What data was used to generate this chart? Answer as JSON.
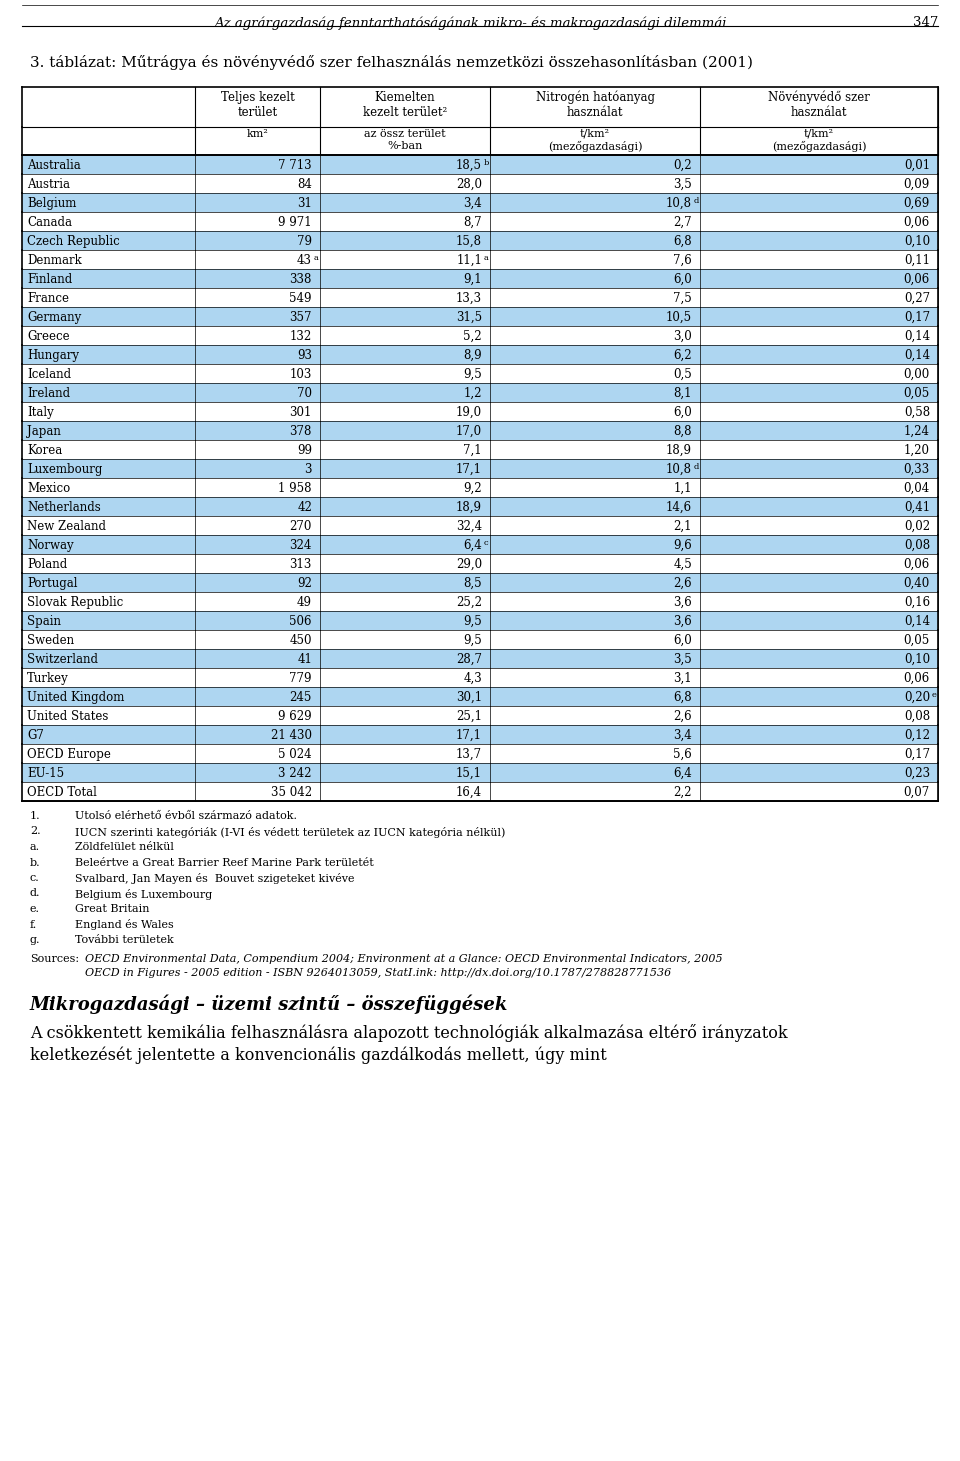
{
  "page_header": "Az agrárgazdaság fenntarthatóságának mikro- és makrogazdasági dilemmái",
  "page_number": "347",
  "table_title": "3. táblázat: Műtrágya és növényvédő szer felhasználás nemzetközi összehasonlításban (2001)",
  "col_headers_row1": [
    "Teljes kezelt\nterület",
    "Kiemelten\nkezelt terület²",
    "Nitrogén hatóanyag\nhasználat",
    "Növényvédő szer\nhasználat"
  ],
  "col_headers_row2": [
    "km²",
    "az össz terület\n%-ban",
    "t/km²\n(mezőgazdasági)",
    "t/km²\n(mezőgazdasági)"
  ],
  "rows": [
    [
      "Australia",
      "7 713",
      "18,5",
      "b",
      "0,2",
      "",
      "0,01",
      ""
    ],
    [
      "Austria",
      "84",
      "28,0",
      "",
      "3,5",
      "",
      "0,09",
      ""
    ],
    [
      "Belgium",
      "31",
      "3,4",
      "",
      "10,8",
      "d",
      "0,69",
      ""
    ],
    [
      "Canada",
      "9 971",
      "8,7",
      "",
      "2,7",
      "",
      "0,06",
      ""
    ],
    [
      "Czech Republic",
      "79",
      "15,8",
      "",
      "6,8",
      "",
      "0,10",
      ""
    ],
    [
      "Denmark",
      "43",
      "a",
      "11,1",
      "a",
      "7,6",
      "",
      "0,11",
      ""
    ],
    [
      "Finland",
      "338",
      "9,1",
      "",
      "6,0",
      "",
      "0,06",
      ""
    ],
    [
      "France",
      "549",
      "13,3",
      "",
      "7,5",
      "",
      "0,27",
      ""
    ],
    [
      "Germany",
      "357",
      "31,5",
      "",
      "10,5",
      "",
      "0,17",
      ""
    ],
    [
      "Greece",
      "132",
      "5,2",
      "",
      "3,0",
      "",
      "0,14",
      ""
    ],
    [
      "Hungary",
      "93",
      "8,9",
      "",
      "6,2",
      "",
      "0,14",
      ""
    ],
    [
      "Iceland",
      "103",
      "9,5",
      "",
      "0,5",
      "",
      "0,00",
      ""
    ],
    [
      "Ireland",
      "70",
      "1,2",
      "",
      "8,1",
      "",
      "0,05",
      ""
    ],
    [
      "Italy",
      "301",
      "19,0",
      "",
      "6,0",
      "",
      "0,58",
      ""
    ],
    [
      "Japan",
      "378",
      "17,0",
      "",
      "8,8",
      "",
      "1,24",
      ""
    ],
    [
      "Korea",
      "99",
      "7,1",
      "",
      "18,9",
      "",
      "1,20",
      ""
    ],
    [
      "Luxembourg",
      "3",
      "17,1",
      "",
      "10,8",
      "d",
      "0,33",
      ""
    ],
    [
      "Mexico",
      "1 958",
      "9,2",
      "",
      "1,1",
      "",
      "0,04",
      ""
    ],
    [
      "Netherlands",
      "42",
      "18,9",
      "",
      "14,6",
      "",
      "0,41",
      ""
    ],
    [
      "New Zealand",
      "270",
      "32,4",
      "",
      "2,1",
      "",
      "0,02",
      ""
    ],
    [
      "Norway",
      "324",
      "6,4",
      "c",
      "9,6",
      "",
      "0,08",
      ""
    ],
    [
      "Poland",
      "313",
      "29,0",
      "",
      "4,5",
      "",
      "0,06",
      ""
    ],
    [
      "Portugal",
      "92",
      "8,5",
      "",
      "2,6",
      "",
      "0,40",
      ""
    ],
    [
      "Slovak Republic",
      "49",
      "25,2",
      "",
      "3,6",
      "",
      "0,16",
      ""
    ],
    [
      "Spain",
      "506",
      "9,5",
      "",
      "3,6",
      "",
      "0,14",
      ""
    ],
    [
      "Sweden",
      "450",
      "9,5",
      "",
      "6,0",
      "",
      "0,05",
      ""
    ],
    [
      "Switzerland",
      "41",
      "28,7",
      "",
      "3,5",
      "",
      "0,10",
      ""
    ],
    [
      "Turkey",
      "779",
      "4,3",
      "",
      "3,1",
      "",
      "0,06",
      ""
    ],
    [
      "United Kingdom",
      "245",
      "30,1",
      "",
      "6,8",
      "",
      "0,20",
      "e"
    ],
    [
      "United States",
      "9 629",
      "25,1",
      "",
      "2,6",
      "",
      "0,08",
      ""
    ],
    [
      "G7",
      "21 430",
      "17,1",
      "",
      "3,4",
      "",
      "0,12",
      ""
    ],
    [
      "OECD Europe",
      "5 024",
      "13,7",
      "",
      "5,6",
      "",
      "0,17",
      ""
    ],
    [
      "EU-15",
      "3 242",
      "15,1",
      "",
      "6,4",
      "",
      "0,23",
      ""
    ],
    [
      "OECD Total",
      "35 042",
      "16,4",
      "",
      "2,2",
      "",
      "0,07",
      ""
    ]
  ],
  "rows_simple": [
    [
      "Australia",
      "7 713",
      "18,5 b",
      "0,2",
      "0,01"
    ],
    [
      "Austria",
      "84",
      "28,0",
      "3,5",
      "0,09"
    ],
    [
      "Belgium",
      "31",
      "3,4",
      "10,8 d",
      "0,69"
    ],
    [
      "Canada",
      "9 971",
      "8,7",
      "2,7",
      "0,06"
    ],
    [
      "Czech Republic",
      "79",
      "15,8",
      "6,8",
      "0,10"
    ],
    [
      "Denmark",
      "43 a",
      "11,1 a",
      "7,6",
      "0,11"
    ],
    [
      "Finland",
      "338",
      "9,1",
      "6,0",
      "0,06"
    ],
    [
      "France",
      "549",
      "13,3",
      "7,5",
      "0,27"
    ],
    [
      "Germany",
      "357",
      "31,5",
      "10,5",
      "0,17"
    ],
    [
      "Greece",
      "132",
      "5,2",
      "3,0",
      "0,14"
    ],
    [
      "Hungary",
      "93",
      "8,9",
      "6,2",
      "0,14"
    ],
    [
      "Iceland",
      "103",
      "9,5",
      "0,5",
      "0,00"
    ],
    [
      "Ireland",
      "70",
      "1,2",
      "8,1",
      "0,05"
    ],
    [
      "Italy",
      "301",
      "19,0",
      "6,0",
      "0,58"
    ],
    [
      "Japan",
      "378",
      "17,0",
      "8,8",
      "1,24"
    ],
    [
      "Korea",
      "99",
      "7,1",
      "18,9",
      "1,20"
    ],
    [
      "Luxembourg",
      "3",
      "17,1",
      "10,8 d",
      "0,33"
    ],
    [
      "Mexico",
      "1 958",
      "9,2",
      "1,1",
      "0,04"
    ],
    [
      "Netherlands",
      "42",
      "18,9",
      "14,6",
      "0,41"
    ],
    [
      "New Zealand",
      "270",
      "32,4",
      "2,1",
      "0,02"
    ],
    [
      "Norway",
      "324",
      "6,4 c",
      "9,6",
      "0,08"
    ],
    [
      "Poland",
      "313",
      "29,0",
      "4,5",
      "0,06"
    ],
    [
      "Portugal",
      "92",
      "8,5",
      "2,6",
      "0,40"
    ],
    [
      "Slovak Republic",
      "49",
      "25,2",
      "3,6",
      "0,16"
    ],
    [
      "Spain",
      "506",
      "9,5",
      "3,6",
      "0,14"
    ],
    [
      "Sweden",
      "450",
      "9,5",
      "6,0",
      "0,05"
    ],
    [
      "Switzerland",
      "41",
      "28,7",
      "3,5",
      "0,10"
    ],
    [
      "Turkey",
      "779",
      "4,3",
      "3,1",
      "0,06"
    ],
    [
      "United Kingdom",
      "245",
      "30,1",
      "6,8",
      "0,20 e"
    ],
    [
      "United States",
      "9 629",
      "25,1",
      "2,6",
      "0,08"
    ],
    [
      "G7",
      "21 430",
      "17,1",
      "3,4",
      "0,12"
    ],
    [
      "OECD Europe",
      "5 024",
      "13,7",
      "5,6",
      "0,17"
    ],
    [
      "EU-15",
      "3 242",
      "15,1",
      "6,4",
      "0,23"
    ],
    [
      "OECD Total",
      "35 042",
      "16,4",
      "2,2",
      "0,07"
    ]
  ],
  "footnotes": [
    [
      "1.",
      "Utolsó elérhető évből származó adatok."
    ],
    [
      "2.",
      "IUCN szerinti kategóriák (I-VI és védett területek az IUCN kategória nélkül)"
    ],
    [
      "a.",
      "Zöldfelület nélkül"
    ],
    [
      "b.",
      "Beleértve a Great Barrier Reef Marine Park területét"
    ],
    [
      "c.",
      "Svalbard, Jan Mayen és  Bouvet szigeteket kivéve"
    ],
    [
      "d.",
      "Belgium és Luxembourg"
    ],
    [
      "e.",
      "Great Britain"
    ],
    [
      "f.",
      "England és Wales"
    ],
    [
      "g.",
      "További területek"
    ]
  ],
  "sources_label": "Sources:",
  "sources_line1": "OECD Environmental Data, Compendium 2004; Environment at a Glance: OECD Environmental Indicators, 2005",
  "sources_line2": "OECD in Figures - 2005 edition - ISBN 9264013059, StatI.ink: http://dx.doi.org/10.1787/278828771536",
  "sources_italic_part1": "OECD Environmental Data",
  "sources_italic_part2": "Environment at a Glance: OECD Environmental Indicators",
  "bottom_heading": "Mikrogazdasági – üzemi szintű – összefüggések",
  "bottom_text1": "A csökkentett kemikália felhasználásra alapozott technológiák alkalmazása eltérő irányzatok",
  "bottom_text2": "keletkezését jelentette a konvencionális gazdálkodás mellett, úgy mint",
  "bg_color_blue": "#AED6F1",
  "bg_color_white": "#FFFFFF",
  "text_color": "#000000",
  "font_size_body": 8.5,
  "font_size_header": 8.5,
  "font_size_title": 11.0,
  "font_size_page_header": 9.5,
  "font_size_footnote": 8.0,
  "font_size_bottom_heading": 13.0,
  "font_size_bottom_text": 11.5
}
